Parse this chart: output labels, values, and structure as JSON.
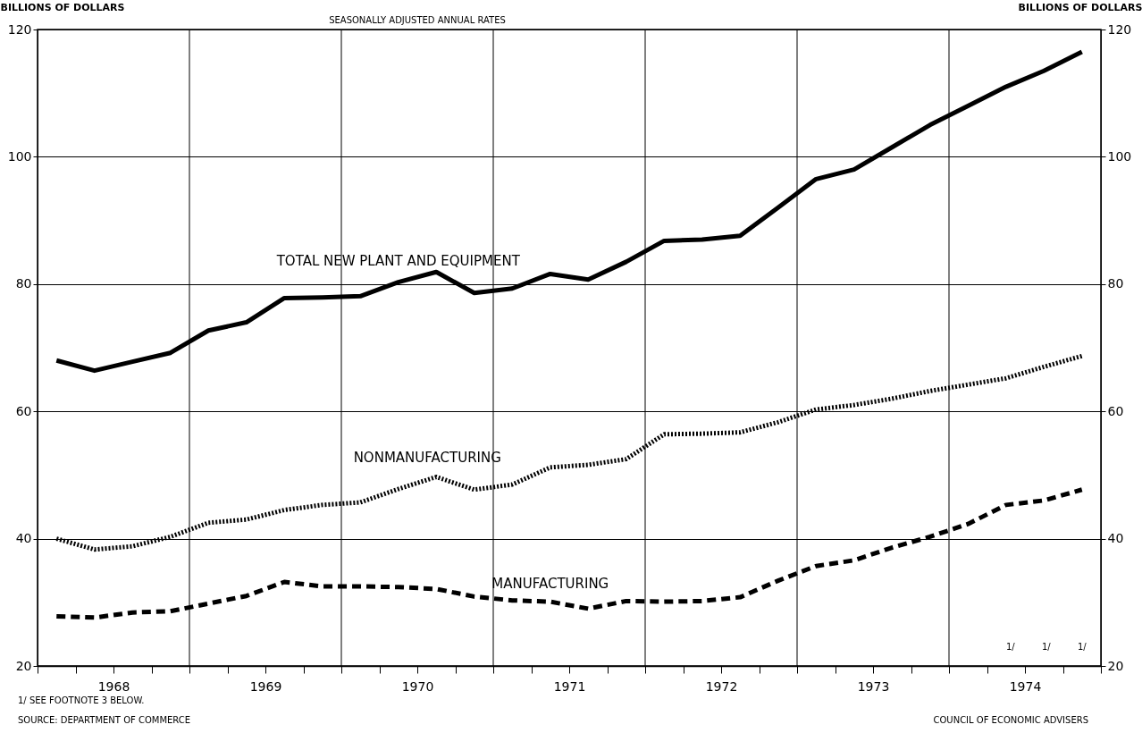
{
  "chart_data": {
    "type": "line",
    "subtitle": "SEASONALLY ADJUSTED ANNUAL RATES",
    "ylabel": "BILLIONS OF DOLLARS",
    "y2label": "BILLIONS OF DOLLARS",
    "x": [
      1968.125,
      1968.375,
      1968.625,
      1968.875,
      1969.125,
      1969.375,
      1969.625,
      1969.875,
      1970.125,
      1970.375,
      1970.625,
      1970.875,
      1971.125,
      1971.375,
      1971.625,
      1971.875,
      1972.125,
      1972.375,
      1972.625,
      1972.875,
      1973.125,
      1973.375,
      1973.625,
      1973.875,
      1974.125,
      1974.375,
      1974.625,
      1974.875
    ],
    "series": [
      {
        "name": "TOTAL NEW PLANT AND EQUIPMENT",
        "color": "#000000",
        "line_style": "solid",
        "values": [
          68,
          66.4,
          67.8,
          69.2,
          72.7,
          74,
          77.8,
          77.9,
          78.1,
          80.3,
          81.9,
          78.6,
          79.3,
          81.6,
          80.7,
          83.5,
          86.8,
          87,
          87.6,
          92,
          96.5,
          98,
          101.5,
          105,
          108,
          111,
          113.5,
          116.5
        ]
      },
      {
        "name": "NONMANUFACTURING",
        "color": "#000000",
        "line_style": "dotted",
        "values": [
          40,
          38.3,
          38.8,
          40.3,
          42.5,
          43,
          44.5,
          45.3,
          45.7,
          47.8,
          49.7,
          47.7,
          48.5,
          51.2,
          51.6,
          52.5,
          56.4,
          56.5,
          56.7,
          58.3,
          60.3,
          61,
          62,
          63.2,
          64.2,
          65.2,
          67,
          68.7
        ]
      },
      {
        "name": "MANUFACTURING",
        "color": "#000000",
        "line_style": "dashed",
        "values": [
          27.8,
          27.6,
          28.4,
          28.6,
          29.8,
          31,
          33.2,
          32.5,
          32.5,
          32.4,
          32.1,
          30.9,
          30.3,
          30.1,
          29,
          30.2,
          30.1,
          30.2,
          30.8,
          33.4,
          35.7,
          36.6,
          38.6,
          40.3,
          42.3,
          45.3,
          46,
          47.7
        ]
      }
    ],
    "xlim": [
      1968,
      1975
    ],
    "xticks": [
      {
        "value": 1968,
        "label": null
      },
      {
        "value": 1968.25,
        "label": null
      },
      {
        "value": 1968.5,
        "label": "1968"
      },
      {
        "value": 1968.75,
        "label": null
      },
      {
        "value": 1969,
        "label": null
      },
      {
        "value": 1969.25,
        "label": null
      },
      {
        "value": 1969.5,
        "label": "1969"
      },
      {
        "value": 1969.75,
        "label": null
      },
      {
        "value": 1970,
        "label": null
      },
      {
        "value": 1970.25,
        "label": null
      },
      {
        "value": 1970.5,
        "label": "1970"
      },
      {
        "value": 1970.75,
        "label": null
      },
      {
        "value": 1971,
        "label": null
      },
      {
        "value": 1971.25,
        "label": null
      },
      {
        "value": 1971.5,
        "label": "1971"
      },
      {
        "value": 1971.75,
        "label": null
      },
      {
        "value": 1972,
        "label": null
      },
      {
        "value": 1972.25,
        "label": null
      },
      {
        "value": 1972.5,
        "label": "1972"
      },
      {
        "value": 1972.75,
        "label": null
      },
      {
        "value": 1973,
        "label": null
      },
      {
        "value": 1973.25,
        "label": null
      },
      {
        "value": 1973.5,
        "label": "1973"
      },
      {
        "value": 1973.75,
        "label": null
      },
      {
        "value": 1974,
        "label": null
      },
      {
        "value": 1974.25,
        "label": null
      },
      {
        "value": 1974.5,
        "label": "1974"
      },
      {
        "value": 1974.75,
        "label": null
      },
      {
        "value": 1975,
        "label": null
      }
    ],
    "ylim": [
      20,
      120
    ],
    "yticks": [
      20,
      40,
      60,
      80,
      100,
      120
    ],
    "y2lim": [
      20,
      120
    ],
    "y2ticks": [
      20,
      40,
      60,
      80,
      100,
      120
    ],
    "grid": "y",
    "marker": "none",
    "ref_lines": [
      {
        "axis": "x",
        "value": 1969
      },
      {
        "axis": "x",
        "value": 1970
      },
      {
        "axis": "x",
        "value": 1971
      },
      {
        "axis": "x",
        "value": 1972
      },
      {
        "axis": "x",
        "value": 1973
      },
      {
        "axis": "x",
        "value": 1974
      }
    ],
    "annotations": [
      "1/",
      "1/",
      "1/",
      "1/ SEE FOOTNOTE 3 BELOW.",
      "SOURCE: DEPARTMENT OF COMMERCE",
      "COUNCIL OF ECONOMIC ADVISERS"
    ]
  }
}
